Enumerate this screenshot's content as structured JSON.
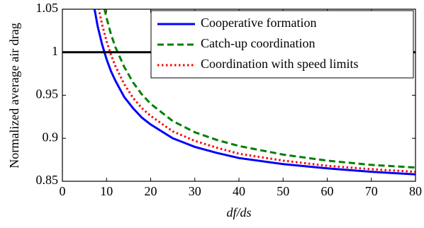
{
  "chart_data": {
    "type": "line",
    "xlabel": "df/ds",
    "ylabel": "Normalized average air drag",
    "xlim": [
      0,
      80
    ],
    "xticks": [
      0,
      10,
      20,
      30,
      40,
      50,
      60,
      70,
      80
    ],
    "ylim": [
      0.85,
      1.05
    ],
    "yticks": [
      0.85,
      0.9,
      0.95,
      1,
      1.05
    ],
    "reference_line": {
      "y": 1,
      "color": "#000000"
    },
    "legend": "upper right",
    "series": [
      {
        "name": "Cooperative formation",
        "color": "#0000ff",
        "style": "solid",
        "x": [
          7,
          8,
          9,
          10,
          11,
          12,
          14,
          16,
          18,
          20,
          25,
          30,
          35,
          40,
          50,
          60,
          70,
          80
        ],
        "values": [
          1.058,
          1.03,
          1.009,
          0.992,
          0.978,
          0.967,
          0.948,
          0.935,
          0.924,
          0.916,
          0.9,
          0.89,
          0.883,
          0.877,
          0.87,
          0.865,
          0.861,
          0.858
        ]
      },
      {
        "name": "Catch-up coordination",
        "color": "#008000",
        "style": "dashed",
        "x": [
          9,
          10,
          11,
          12,
          14,
          16,
          18,
          20,
          25,
          30,
          35,
          40,
          50,
          60,
          70,
          80
        ],
        "values": [
          1.062,
          1.04,
          1.021,
          1.006,
          0.983,
          0.965,
          0.951,
          0.94,
          0.92,
          0.907,
          0.898,
          0.891,
          0.881,
          0.874,
          0.869,
          0.866
        ]
      },
      {
        "name": "Coordination with speed limits",
        "color": "#ff0000",
        "style": "dotted",
        "x": [
          8,
          9,
          10,
          11,
          12,
          14,
          16,
          18,
          20,
          25,
          30,
          35,
          40,
          50,
          60,
          70,
          80
        ],
        "values": [
          1.056,
          1.032,
          1.013,
          0.997,
          0.984,
          0.963,
          0.947,
          0.935,
          0.926,
          0.908,
          0.897,
          0.889,
          0.882,
          0.874,
          0.868,
          0.864,
          0.861
        ]
      }
    ]
  }
}
